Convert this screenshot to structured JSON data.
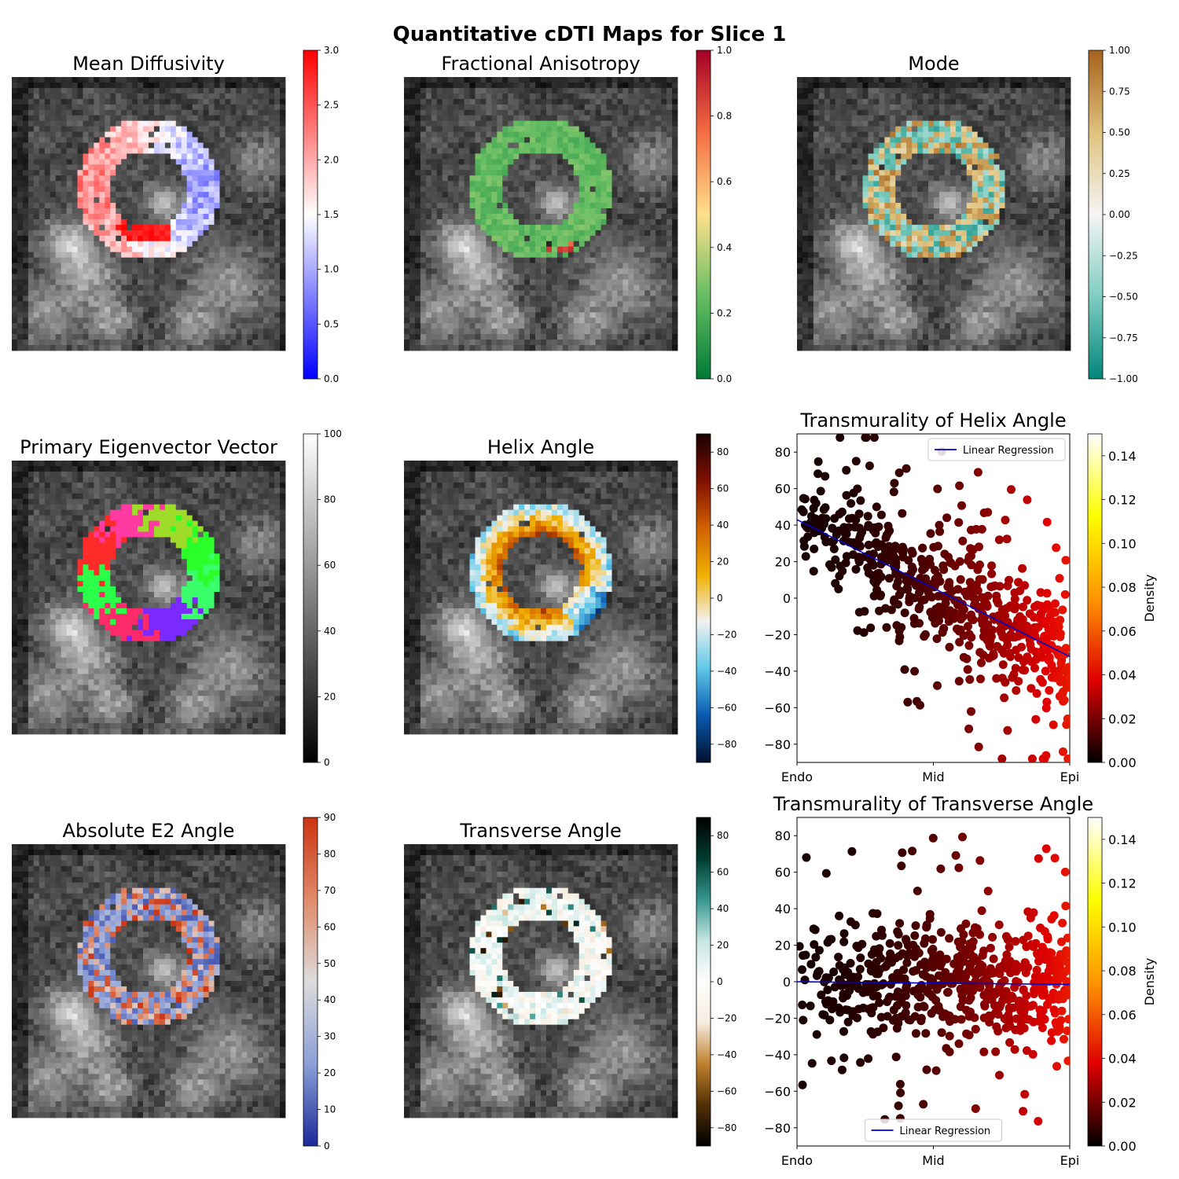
{
  "figure": {
    "title": "Quantitative cDTI Maps for Slice 1"
  },
  "chart_data": [
    {
      "type": "heatmap",
      "title": "Mean Diffusivity",
      "colorbar": {
        "range": [
          0,
          3.0
        ],
        "ticks": [
          "0.0",
          "0.5",
          "1.0",
          "1.5",
          "2.0",
          "2.5",
          "3.0"
        ],
        "colors": [
          "#0000ff",
          "#ffffff",
          "#ff0000"
        ]
      }
    },
    {
      "type": "heatmap",
      "title": "Fractional Anisotropy",
      "colorbar": {
        "range": [
          0,
          1.0
        ],
        "ticks": [
          "0.0",
          "0.2",
          "0.4",
          "0.6",
          "0.8",
          "1.0"
        ],
        "colors": [
          "#007a35",
          "#66bd63",
          "#fee08b",
          "#f46d43",
          "#a50026"
        ]
      }
    },
    {
      "type": "heatmap",
      "title": "Mode",
      "colorbar": {
        "range": [
          -1.0,
          1.0
        ],
        "ticks": [
          "−1.00",
          "−0.75",
          "−0.50",
          "−0.25",
          "0.00",
          "0.25",
          "0.50",
          "0.75",
          "1.00"
        ],
        "colors": [
          "#01857a",
          "#80cdc1",
          "#f5f5f5",
          "#dfc27d",
          "#a6611a"
        ]
      }
    },
    {
      "type": "heatmap",
      "title": "Primary Eigenvector Vector",
      "colorbar": {
        "range": [
          0,
          100
        ],
        "ticks": [
          "0",
          "20",
          "40",
          "60",
          "80",
          "100"
        ],
        "colors": [
          "#000000",
          "#ffffff"
        ]
      }
    },
    {
      "type": "heatmap",
      "title": "Helix Angle",
      "colorbar": {
        "range": [
          -90,
          90
        ],
        "ticks": [
          "−80",
          "−60",
          "−40",
          "−20",
          "0",
          "20",
          "40",
          "60",
          "80"
        ],
        "colors": [
          "#001030",
          "#0a5ab0",
          "#5ec8e8",
          "#f2f2f0",
          "#f0b000",
          "#d06000",
          "#801000",
          "#1a0000"
        ]
      }
    },
    {
      "type": "scatter",
      "title": "Transmurality of Helix Angle",
      "xlabel": "",
      "ylabel": "",
      "x_ticks": [
        "Endo",
        "Mid",
        "Epi"
      ],
      "y_ticks": [
        "−80",
        "−60",
        "−40",
        "−20",
        "0",
        "20",
        "40",
        "60",
        "80"
      ],
      "ylim": [
        -90,
        90
      ],
      "regression": {
        "name": "Linear Regression",
        "y_at_endo": 43,
        "y_at_epi": -32
      },
      "legend_loc": "upper right",
      "colorbar": {
        "label": "Density",
        "range": [
          0,
          0.15
        ],
        "ticks": [
          "0.00",
          "0.02",
          "0.04",
          "0.06",
          "0.08",
          "0.10",
          "0.12",
          "0.14"
        ],
        "colors": [
          "#000000",
          "#e00000",
          "#ff9600",
          "#ffff00",
          "#ffffff"
        ]
      }
    },
    {
      "type": "heatmap",
      "title": "Absolute E2 Angle",
      "colorbar": {
        "range": [
          0,
          90
        ],
        "ticks": [
          "0",
          "10",
          "20",
          "30",
          "40",
          "50",
          "60",
          "70",
          "80",
          "90"
        ],
        "colors": [
          "#1a2a9a",
          "#8c9fd6",
          "#dcdcdc",
          "#e08a6a",
          "#cc3311"
        ]
      }
    },
    {
      "type": "heatmap",
      "title": "Transverse Angle",
      "colorbar": {
        "range": [
          -90,
          90
        ],
        "ticks": [
          "−80",
          "−60",
          "−40",
          "−20",
          "0",
          "20",
          "40",
          "60",
          "80"
        ],
        "colors": [
          "#000000",
          "#543005",
          "#bf812d",
          "#f6ecde",
          "#ffffff",
          "#c7e6e2",
          "#35978f",
          "#003c30",
          "#000000"
        ]
      }
    },
    {
      "type": "scatter",
      "title": "Transmurality of Transverse Angle",
      "xlabel": "",
      "ylabel": "",
      "x_ticks": [
        "Endo",
        "Mid",
        "Epi"
      ],
      "y_ticks": [
        "−80",
        "−60",
        "−40",
        "−20",
        "0",
        "20",
        "40",
        "60",
        "80"
      ],
      "ylim": [
        -90,
        90
      ],
      "regression": {
        "name": "Linear Regression",
        "y_at_endo": 0,
        "y_at_epi": -1.5
      },
      "legend_loc": "lower center",
      "colorbar": {
        "label": "Density",
        "range": [
          0,
          0.15
        ],
        "ticks": [
          "0.00",
          "0.02",
          "0.04",
          "0.06",
          "0.08",
          "0.10",
          "0.12",
          "0.14"
        ],
        "colors": [
          "#000000",
          "#e00000",
          "#ff9600",
          "#ffff00",
          "#ffffff"
        ]
      }
    }
  ]
}
